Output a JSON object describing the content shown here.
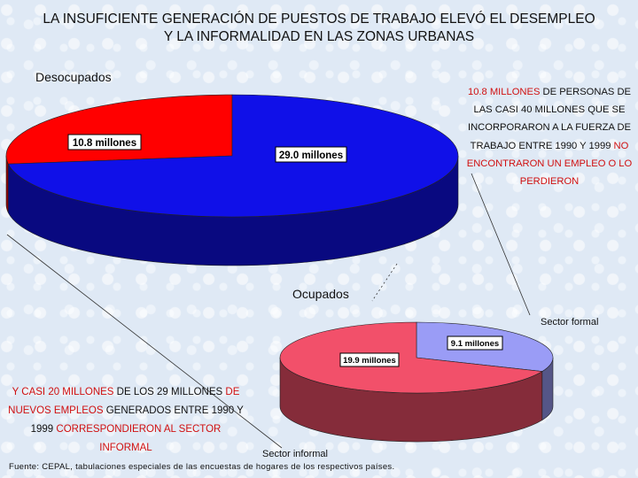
{
  "title": {
    "line1": "LA INSUFICIENTE GENERACIÓN DE PUESTOS DE TRABAJO ELEVÓ EL DESEMPLEO",
    "line2": "Y LA INFORMALIDAD EN LAS ZONAS URBANAS"
  },
  "colors": {
    "unemployed": "#ff0000",
    "employed": "#1010e8",
    "informal": "#f2506a",
    "formal": "#9a9cf6",
    "note_red": "#d01010"
  },
  "chart_data": [
    {
      "type": "pie",
      "categories": [
        "Desocupados",
        "Ocupados"
      ],
      "values": [
        10.8,
        29.0
      ],
      "labels": [
        "10.8 millones",
        "29.0 millones"
      ]
    },
    {
      "type": "pie",
      "categories": [
        "Sector formal",
        "Sector informal"
      ],
      "values": [
        9.1,
        19.9
      ],
      "labels": [
        "9.1 millones",
        "19.9 millones"
      ]
    }
  ],
  "note_right": {
    "p1": "10.8 MILLONES",
    "p2": " DE PERSONAS DE LAS CASI 40 MILLONES QUE SE INCORPORARON A LA FUERZA DE TRABAJO ENTRE 1990 Y 1999 ",
    "p3": "NO ENCONTRARON UN EMPLEO O LO PERDIERON"
  },
  "note_left": {
    "p1": "Y CASI 20 MILLONES",
    "p2": " DE LOS 29 MILLONES ",
    "p3": "DE NUEVOS EMPLEOS",
    "p4": " GENERADOS ENTRE 1990 Y 1999 ",
    "p5": "CORRESPONDIERON AL SECTOR INFORMAL"
  },
  "source": "Fuente: CEPAL, tabulaciones especiales de las encuestas de hogares de los respectivos países."
}
